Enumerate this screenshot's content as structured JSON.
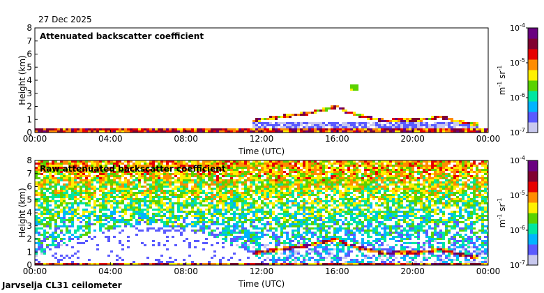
{
  "date": "27 Dec 2025",
  "footer": "Jarvselja CL31 ceilometer",
  "colors": {
    "white": "#ffffff",
    "scale": [
      "#c8c8ee",
      "#5a5aff",
      "#00b4ff",
      "#00e6a0",
      "#5ad200",
      "#fff000",
      "#ff8c00",
      "#e60000",
      "#800030",
      "#6a0080"
    ]
  },
  "chart_data": [
    {
      "type": "heatmap",
      "title": "Attenuated backscatter coefficient",
      "xlabel": "Time (UTC)",
      "ylabel": "Height (km)",
      "xlim": [
        0,
        24
      ],
      "ylim": [
        0,
        8
      ],
      "x_ticks": [
        "00:00",
        "04:00",
        "08:00",
        "12:00",
        "16:00",
        "20:00",
        "00:00"
      ],
      "y_ticks": [
        "0",
        "1",
        "2",
        "3",
        "4",
        "5",
        "6",
        "7",
        "8"
      ],
      "colorbar": {
        "label_base": "m",
        "label_exp1": "-1",
        "label_mid": " sr",
        "label_exp2": "-1",
        "ticks": [
          {
            "base": "10",
            "exp": "-4",
            "value": -4
          },
          {
            "base": "10",
            "exp": "-5",
            "value": -5
          },
          {
            "base": "10",
            "exp": "-6",
            "value": -6
          },
          {
            "base": "10",
            "exp": "-7",
            "value": -7
          }
        ]
      },
      "features": {
        "surface_layer_top_km": 0.3,
        "cloud_layer": [
          [
            11.5,
            0.9
          ],
          [
            12.5,
            1.1
          ],
          [
            13.5,
            1.3
          ],
          [
            14.5,
            1.5
          ],
          [
            15.5,
            1.8
          ],
          [
            16.0,
            2.0
          ],
          [
            16.5,
            1.6
          ],
          [
            17.5,
            1.2
          ],
          [
            18.5,
            0.9
          ],
          [
            20.5,
            1.0
          ],
          [
            21.5,
            1.2
          ],
          [
            22.5,
            0.8
          ],
          [
            23.5,
            0.6
          ]
        ],
        "elevated_patch": {
          "t": 16.9,
          "h": 3.5
        }
      }
    },
    {
      "type": "heatmap",
      "title": "Raw attenuated backscatter coefficient",
      "xlabel": "Time (UTC)",
      "ylabel": "Height (km)",
      "xlim": [
        0,
        24
      ],
      "ylim": [
        0,
        8
      ],
      "x_ticks": [
        "00:00",
        "04:00",
        "08:00",
        "12:00",
        "16:00",
        "20:00",
        "00:00"
      ],
      "y_ticks": [
        "0",
        "1",
        "2",
        "3",
        "4",
        "5",
        "6",
        "7",
        "8"
      ],
      "colorbar": {
        "label_base": "m",
        "label_exp1": "-1",
        "label_mid": " sr",
        "label_exp2": "-1",
        "ticks": [
          {
            "base": "10",
            "exp": "-4",
            "value": -4
          },
          {
            "base": "10",
            "exp": "-5",
            "value": -5
          },
          {
            "base": "10",
            "exp": "-6",
            "value": -6
          },
          {
            "base": "10",
            "exp": "-7",
            "value": -7
          }
        ]
      },
      "features": {
        "noise_floor_km": 3.5,
        "clear_dome_center_t": 6.0,
        "clear_dome_top_km": 3.0,
        "cloud_layer": [
          [
            11.5,
            0.9
          ],
          [
            12.5,
            1.1
          ],
          [
            13.5,
            1.3
          ],
          [
            14.5,
            1.5
          ],
          [
            15.5,
            1.8
          ],
          [
            16.0,
            2.0
          ],
          [
            16.5,
            1.6
          ],
          [
            17.5,
            1.2
          ],
          [
            18.5,
            0.9
          ],
          [
            20.5,
            1.0
          ],
          [
            21.5,
            1.2
          ],
          [
            22.5,
            0.8
          ],
          [
            23.5,
            0.6
          ]
        ]
      }
    }
  ]
}
